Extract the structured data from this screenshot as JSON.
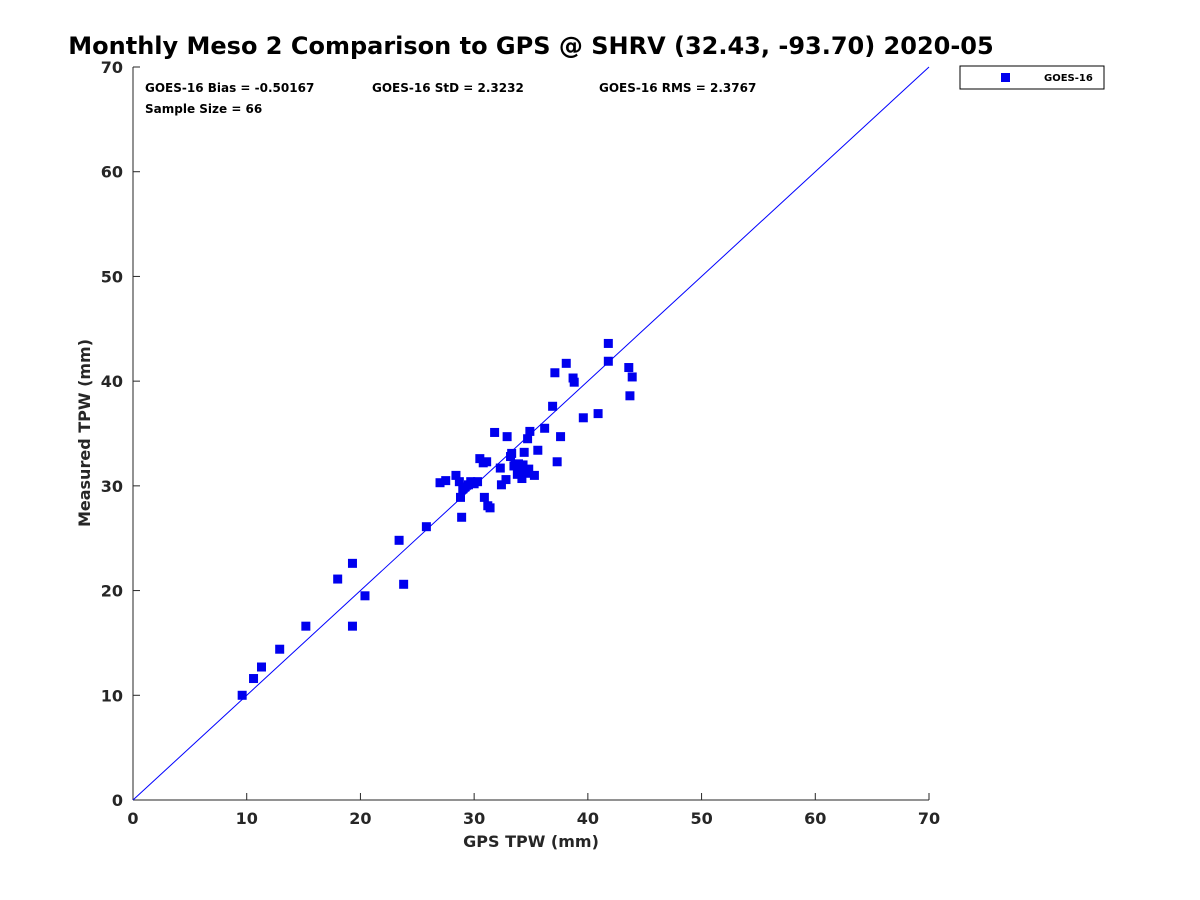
{
  "chart_data": {
    "type": "scatter",
    "title": "Monthly Meso 2 Comparison to GPS @ SHRV (32.43, -93.70) 2020-05",
    "xlabel": "GPS TPW (mm)",
    "ylabel": "Measured TPW (mm)",
    "xlim": [
      0,
      70
    ],
    "ylim": [
      0,
      70
    ],
    "xticks": [
      "0",
      "10",
      "20",
      "30",
      "40",
      "50",
      "60",
      "70"
    ],
    "yticks": [
      "0",
      "10",
      "20",
      "30",
      "40",
      "50",
      "60",
      "70"
    ],
    "grid": false,
    "legend_position": "outside-top-right",
    "reference_line": {
      "type": "one-to-one",
      "from": [
        0,
        0
      ],
      "to": [
        70,
        70
      ],
      "color": "#0000ff"
    },
    "annotations": {
      "bias": "GOES-16 Bias = -0.50167",
      "std": "GOES-16 StD = 2.3232",
      "rms": "GOES-16 RMS = 2.3767",
      "sample": "Sample Size = 66"
    },
    "series": [
      {
        "name": "GOES-16",
        "color": "#0000ee",
        "marker": "square",
        "points": [
          [
            9.6,
            10.0
          ],
          [
            10.6,
            11.6
          ],
          [
            11.3,
            12.7
          ],
          [
            12.9,
            14.4
          ],
          [
            15.2,
            16.6
          ],
          [
            18.0,
            21.1
          ],
          [
            19.3,
            22.6
          ],
          [
            19.3,
            16.6
          ],
          [
            20.4,
            19.5
          ],
          [
            23.4,
            24.8
          ],
          [
            23.8,
            20.6
          ],
          [
            25.8,
            26.1
          ],
          [
            27.0,
            30.3
          ],
          [
            27.5,
            30.5
          ],
          [
            28.4,
            31.0
          ],
          [
            28.7,
            30.4
          ],
          [
            28.8,
            28.9
          ],
          [
            28.9,
            27.0
          ],
          [
            29.0,
            29.7
          ],
          [
            29.2,
            29.9
          ],
          [
            29.5,
            30.1
          ],
          [
            29.7,
            30.4
          ],
          [
            30.0,
            30.2
          ],
          [
            30.3,
            30.4
          ],
          [
            30.5,
            32.6
          ],
          [
            30.8,
            32.2
          ],
          [
            30.9,
            28.9
          ],
          [
            31.1,
            32.3
          ],
          [
            31.2,
            28.1
          ],
          [
            31.4,
            27.9
          ],
          [
            31.8,
            35.1
          ],
          [
            32.3,
            31.7
          ],
          [
            32.4,
            30.1
          ],
          [
            32.8,
            30.6
          ],
          [
            32.9,
            34.7
          ],
          [
            33.2,
            32.8
          ],
          [
            33.3,
            33.1
          ],
          [
            33.5,
            31.9
          ],
          [
            33.8,
            31.1
          ],
          [
            33.9,
            32.1
          ],
          [
            34.0,
            31.5
          ],
          [
            34.2,
            30.7
          ],
          [
            34.3,
            32.0
          ],
          [
            34.4,
            33.2
          ],
          [
            34.6,
            31.2
          ],
          [
            34.7,
            34.5
          ],
          [
            34.9,
            35.2
          ],
          [
            35.3,
            31.0
          ],
          [
            35.6,
            33.4
          ],
          [
            36.2,
            35.5
          ],
          [
            36.9,
            37.6
          ],
          [
            37.1,
            40.8
          ],
          [
            37.3,
            32.3
          ],
          [
            37.6,
            34.7
          ],
          [
            38.1,
            41.7
          ],
          [
            38.7,
            40.3
          ],
          [
            38.8,
            39.9
          ],
          [
            39.6,
            36.5
          ],
          [
            40.9,
            36.9
          ],
          [
            41.8,
            43.6
          ],
          [
            41.8,
            41.9
          ],
          [
            43.6,
            41.3
          ],
          [
            43.7,
            38.6
          ],
          [
            43.9,
            40.4
          ],
          [
            33.6,
            32.0
          ],
          [
            34.8,
            31.6
          ]
        ]
      }
    ]
  }
}
